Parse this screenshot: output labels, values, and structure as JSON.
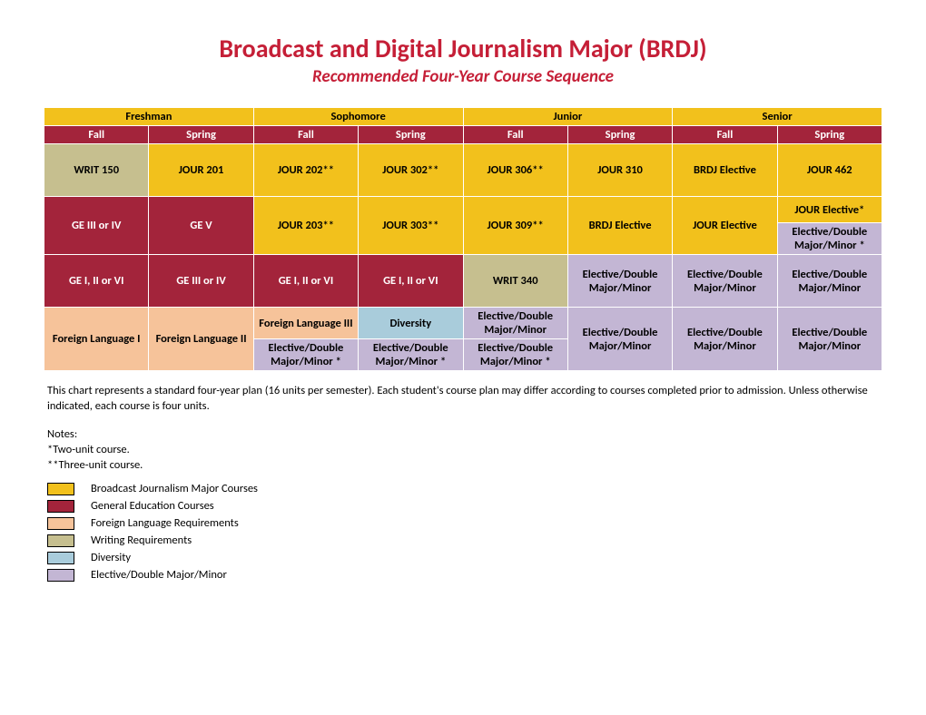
{
  "colors": {
    "title": "#c51f37",
    "yellow": "#f2c11c",
    "red": "#a3243b",
    "peach": "#f6c39a",
    "olive": "#c6bf8f",
    "blue": "#a9ccdb",
    "purple": "#c3b6d4",
    "red_text": "#ffffff",
    "default_text": "#000000"
  },
  "title": "Broadcast and Digital Journalism Major (BRDJ)",
  "subtitle": "Recommended Four-Year Course Sequence",
  "years": [
    "Freshman",
    "Sophomore",
    "Junior",
    "Senior"
  ],
  "semesters": [
    "Fall",
    "Spring",
    "Fall",
    "Spring",
    "Fall",
    "Spring",
    "Fall",
    "Spring"
  ],
  "rows": [
    [
      {
        "t": "WRIT 150",
        "c": "olive"
      },
      {
        "t": "JOUR 201",
        "c": "yellow"
      },
      {
        "t": "JOUR 202**",
        "c": "yellow"
      },
      {
        "t": "JOUR 302**",
        "c": "yellow"
      },
      {
        "t": "JOUR 306**",
        "c": "yellow"
      },
      {
        "t": "JOUR 310",
        "c": "yellow"
      },
      {
        "t": "BRDJ Elective",
        "c": "yellow"
      },
      {
        "t": "JOUR 462",
        "c": "yellow"
      }
    ],
    [
      {
        "t": "GE III or IV",
        "c": "red"
      },
      {
        "t": "GE V",
        "c": "red"
      },
      {
        "t": "JOUR 203**",
        "c": "yellow"
      },
      {
        "t": "JOUR 303**",
        "c": "yellow"
      },
      {
        "t": "JOUR 309**",
        "c": "yellow"
      },
      {
        "t": "BRDJ Elective",
        "c": "yellow"
      },
      {
        "t": "JOUR Elective",
        "c": "yellow"
      },
      {
        "split": true,
        "top": {
          "t": "JOUR Elective*",
          "c": "yellow"
        },
        "bot": {
          "t": "Elective/Double Major/Minor *",
          "c": "purple"
        }
      }
    ],
    [
      {
        "t": "GE I, II or VI",
        "c": "red"
      },
      {
        "t": "GE III or IV",
        "c": "red"
      },
      {
        "t": "GE I, II or VI",
        "c": "red"
      },
      {
        "t": "GE I, II or VI",
        "c": "red"
      },
      {
        "t": "WRIT 340",
        "c": "olive"
      },
      {
        "t": "Elective/Double Major/Minor",
        "c": "purple"
      },
      {
        "t": "Elective/Double Major/Minor",
        "c": "purple"
      },
      {
        "t": "Elective/Double Major/Minor",
        "c": "purple"
      }
    ],
    [
      {
        "t": "Foreign Language I",
        "c": "peach"
      },
      {
        "t": "Foreign Language II",
        "c": "peach"
      },
      {
        "split": true,
        "top": {
          "t": "Foreign Language III",
          "c": "peach"
        },
        "bot": {
          "t": "Elective/Double Major/Minor *",
          "c": "purple"
        }
      },
      {
        "split": true,
        "top": {
          "t": "Diversity",
          "c": "blue"
        },
        "bot": {
          "t": "Elective/Double Major/Minor *",
          "c": "purple"
        }
      },
      {
        "split": true,
        "top": {
          "t": "Elective/Double Major/Minor",
          "c": "purple"
        },
        "bot": {
          "t": "Elective/Double Major/Minor *",
          "c": "purple"
        }
      },
      {
        "t": "Elective/Double Major/Minor",
        "c": "purple"
      },
      {
        "t": "Elective/Double Major/Minor",
        "c": "purple"
      },
      {
        "t": "Elective/Double Major/Minor",
        "c": "purple"
      }
    ]
  ],
  "footer_note": "This chart represents a standard four-year plan (16 units per semester).  Each student's course plan may differ according to courses completed prior to admission.  Unless otherwise indicated, each course is four units.",
  "notes_label": "Notes:",
  "notes": [
    "*Two-unit course.",
    "**Three-unit course."
  ],
  "legend": [
    {
      "c": "yellow",
      "t": "Broadcast Journalism Major Courses"
    },
    {
      "c": "red",
      "t": "General Education Courses"
    },
    {
      "c": "peach",
      "t": "Foreign Language Requirements"
    },
    {
      "c": "olive",
      "t": "Writing Requirements"
    },
    {
      "c": "blue",
      "t": "Diversity"
    },
    {
      "c": "purple",
      "t": "Elective/Double Major/Minor"
    }
  ]
}
